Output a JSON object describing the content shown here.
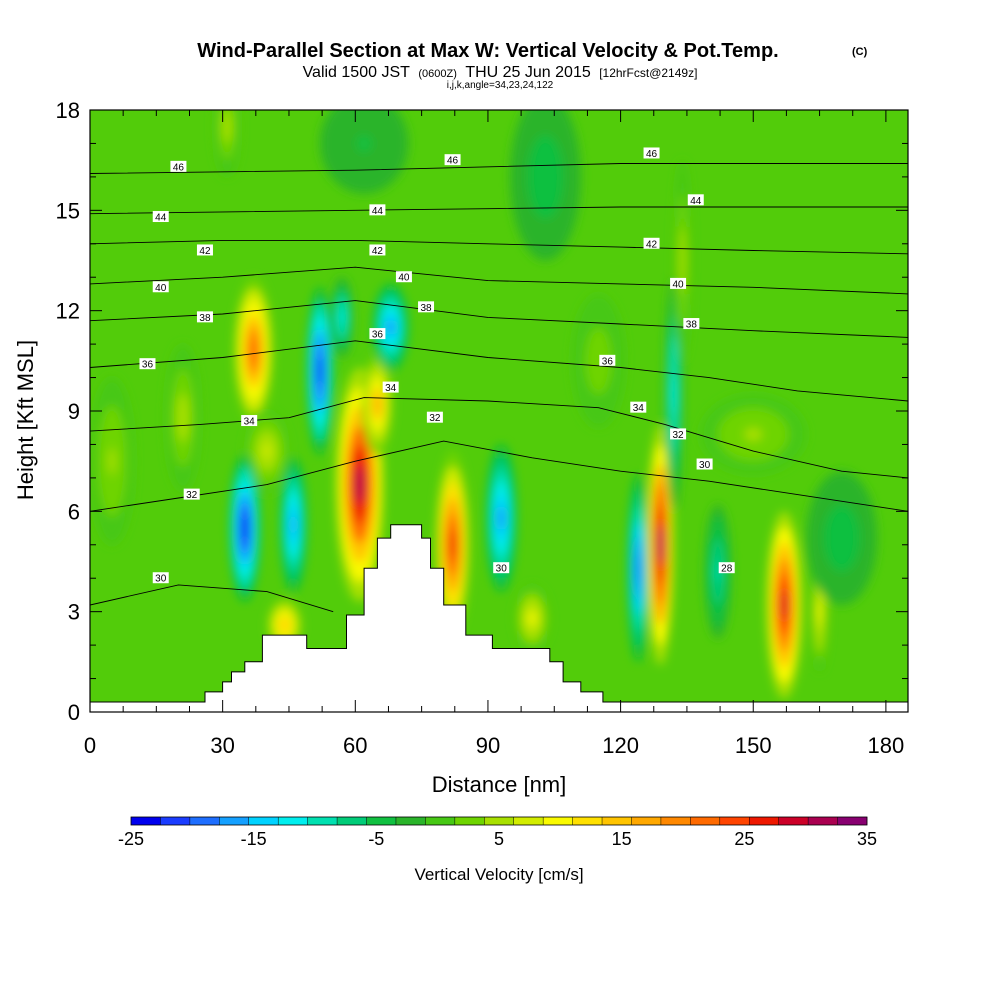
{
  "chart_data": {
    "type": "heatmap",
    "title": "Wind-Parallel Section at Max W: Vertical Velocity & Pot.Temp.",
    "title_mark": "(C)",
    "subtitle": {
      "valid": "Valid 1500 JST",
      "zulu": "(0600Z)",
      "date": "THU 25 Jun 2015",
      "forecast": "[12hrFcst@2149z]"
    },
    "indices": "i,j,k,angle=34,23,24,122",
    "xlabel": "Distance [nm]",
    "ylabel": "Height [Kft MSL]",
    "xlim": [
      0,
      185
    ],
    "ylim": [
      0,
      18
    ],
    "xticks": [
      "0",
      "30",
      "60",
      "90",
      "120",
      "150",
      "180"
    ],
    "yticks": [
      "0",
      "3",
      "6",
      "9",
      "12",
      "15",
      "18"
    ],
    "colorbar": {
      "label": "Vertical Velocity [cm/s]",
      "range": [
        -25,
        35
      ],
      "step": 2.5,
      "tick_labels": [
        "-25",
        "-15",
        "-5",
        "5",
        "15",
        "25",
        "35"
      ],
      "colors": [
        "#0000ee",
        "#1a3cff",
        "#1e6eff",
        "#14a0ff",
        "#00d2ff",
        "#00eeee",
        "#00e0b0",
        "#00cc78",
        "#10c040",
        "#2ab42a",
        "#46c814",
        "#6ed400",
        "#a8e000",
        "#d2ec00",
        "#fafa00",
        "#ffe000",
        "#ffc400",
        "#ffa800",
        "#ff8800",
        "#ff6a00",
        "#ff4400",
        "#ee1800",
        "#cc0028",
        "#aa0050",
        "#880070"
      ]
    },
    "velocity_cells": [
      {
        "x": 37,
        "y": 10.8,
        "rx": 4.5,
        "ry": 2.2,
        "w": 24
      },
      {
        "x": 40,
        "y": 7.8,
        "rx": 5,
        "ry": 1.2,
        "w": 8
      },
      {
        "x": 35,
        "y": 5.5,
        "rx": 3.5,
        "ry": 2.2,
        "w": -25
      },
      {
        "x": 46,
        "y": 5.6,
        "rx": 3,
        "ry": 2,
        "w": -17
      },
      {
        "x": 52,
        "y": 10.2,
        "rx": 3,
        "ry": 2.5,
        "w": -24
      },
      {
        "x": 57,
        "y": 11.8,
        "rx": 2.5,
        "ry": 1.2,
        "w": -12
      },
      {
        "x": 61,
        "y": 6.8,
        "rx": 5.5,
        "ry": 3.5,
        "w": 34
      },
      {
        "x": 65,
        "y": 9.2,
        "rx": 3.5,
        "ry": 1.5,
        "w": 18
      },
      {
        "x": 68,
        "y": 11.5,
        "rx": 4,
        "ry": 1.3,
        "w": -18
      },
      {
        "x": 44,
        "y": 2.6,
        "rx": 4,
        "ry": 0.8,
        "w": 15
      },
      {
        "x": 82,
        "y": 5.0,
        "rx": 4,
        "ry": 2.8,
        "w": 28
      },
      {
        "x": 93,
        "y": 5.8,
        "rx": 3.5,
        "ry": 2.2,
        "w": -18
      },
      {
        "x": 100,
        "y": 2.8,
        "rx": 4,
        "ry": 1.0,
        "w": 10
      },
      {
        "x": 124,
        "y": 4.3,
        "rx": 2.5,
        "ry": 2.8,
        "w": -20
      },
      {
        "x": 129,
        "y": 5.0,
        "rx": 3,
        "ry": 3.6,
        "w": 35
      },
      {
        "x": 132,
        "y": 9.5,
        "rx": 2,
        "ry": 3.5,
        "w": -12
      },
      {
        "x": 134,
        "y": 13.5,
        "rx": 2,
        "ry": 3.0,
        "w": 7
      },
      {
        "x": 142,
        "y": 4.2,
        "rx": 3,
        "ry": 2.0,
        "w": -8
      },
      {
        "x": 157,
        "y": 3.2,
        "rx": 4,
        "ry": 2.8,
        "w": 30
      },
      {
        "x": 165,
        "y": 3.0,
        "rx": 2,
        "ry": 1.8,
        "w": 10
      },
      {
        "x": 5,
        "y": 7.5,
        "rx": 5,
        "ry": 2.5,
        "w": 5
      },
      {
        "x": 21,
        "y": 8.8,
        "rx": 4,
        "ry": 2.2,
        "w": 6
      },
      {
        "x": 31,
        "y": 17.5,
        "rx": 3,
        "ry": 1.5,
        "w": 6
      },
      {
        "x": 62,
        "y": 17.0,
        "rx": 10,
        "ry": 1.5,
        "w": -3
      },
      {
        "x": 103,
        "y": 16.0,
        "rx": 8,
        "ry": 2.5,
        "w": -4
      },
      {
        "x": 115,
        "y": 10.5,
        "rx": 6,
        "ry": 2.0,
        "w": 4
      },
      {
        "x": 150,
        "y": 8.3,
        "rx": 12,
        "ry": 1.2,
        "w": 5
      },
      {
        "x": 170,
        "y": 5.2,
        "rx": 8,
        "ry": 2.0,
        "w": -4
      }
    ],
    "isentropes": [
      {
        "label": "30",
        "pts": [
          [
            0,
            3.2
          ],
          [
            20,
            3.8
          ],
          [
            40,
            3.6
          ],
          [
            55,
            3.0
          ]
        ]
      },
      {
        "label": "32",
        "pts": [
          [
            0,
            6.0
          ],
          [
            20,
            6.4
          ],
          [
            40,
            6.8
          ],
          [
            60,
            7.5
          ],
          [
            80,
            8.1
          ],
          [
            100,
            7.6
          ],
          [
            120,
            7.2
          ],
          [
            140,
            6.9
          ],
          [
            160,
            6.5
          ],
          [
            185,
            6.0
          ]
        ]
      },
      {
        "label": "34",
        "pts": [
          [
            0,
            8.4
          ],
          [
            25,
            8.6
          ],
          [
            45,
            8.8
          ],
          [
            62,
            9.4
          ],
          [
            90,
            9.3
          ],
          [
            115,
            9.1
          ],
          [
            130,
            8.6
          ],
          [
            150,
            7.8
          ],
          [
            170,
            7.2
          ],
          [
            185,
            7.0
          ]
        ]
      },
      {
        "label": "36",
        "pts": [
          [
            0,
            10.3
          ],
          [
            30,
            10.6
          ],
          [
            60,
            11.1
          ],
          [
            90,
            10.6
          ],
          [
            120,
            10.3
          ],
          [
            140,
            10.0
          ],
          [
            160,
            9.6
          ],
          [
            185,
            9.3
          ]
        ]
      },
      {
        "label": "38",
        "pts": [
          [
            0,
            11.7
          ],
          [
            30,
            11.9
          ],
          [
            60,
            12.3
          ],
          [
            90,
            11.8
          ],
          [
            120,
            11.6
          ],
          [
            150,
            11.4
          ],
          [
            185,
            11.2
          ]
        ]
      },
      {
        "label": "40",
        "pts": [
          [
            0,
            12.8
          ],
          [
            30,
            13.0
          ],
          [
            60,
            13.3
          ],
          [
            90,
            12.9
          ],
          [
            120,
            12.8
          ],
          [
            150,
            12.7
          ],
          [
            185,
            12.5
          ]
        ]
      },
      {
        "label": "42",
        "pts": [
          [
            0,
            14.0
          ],
          [
            30,
            14.1
          ],
          [
            60,
            14.1
          ],
          [
            90,
            14.0
          ],
          [
            120,
            13.9
          ],
          [
            150,
            13.8
          ],
          [
            185,
            13.7
          ]
        ]
      },
      {
        "label": "44",
        "pts": [
          [
            0,
            14.9
          ],
          [
            60,
            15.0
          ],
          [
            120,
            15.1
          ],
          [
            185,
            15.1
          ]
        ]
      },
      {
        "label": "46",
        "pts": [
          [
            0,
            16.1
          ],
          [
            60,
            16.2
          ],
          [
            120,
            16.4
          ],
          [
            185,
            16.4
          ]
        ]
      }
    ],
    "contour_labels": [
      {
        "text": "46",
        "x": 20,
        "y": 16.3
      },
      {
        "text": "46",
        "x": 82,
        "y": 16.5
      },
      {
        "text": "46",
        "x": 127,
        "y": 16.7
      },
      {
        "text": "44",
        "x": 16,
        "y": 14.8
      },
      {
        "text": "44",
        "x": 65,
        "y": 15.0
      },
      {
        "text": "44",
        "x": 137,
        "y": 15.3
      },
      {
        "text": "42",
        "x": 26,
        "y": 13.8
      },
      {
        "text": "42",
        "x": 65,
        "y": 13.8
      },
      {
        "text": "42",
        "x": 127,
        "y": 14.0
      },
      {
        "text": "40",
        "x": 16,
        "y": 12.7
      },
      {
        "text": "40",
        "x": 71,
        "y": 13.0
      },
      {
        "text": "40",
        "x": 133,
        "y": 12.8
      },
      {
        "text": "38",
        "x": 26,
        "y": 11.8
      },
      {
        "text": "38",
        "x": 76,
        "y": 12.1
      },
      {
        "text": "38",
        "x": 136,
        "y": 11.6
      },
      {
        "text": "36",
        "x": 13,
        "y": 10.4
      },
      {
        "text": "36",
        "x": 65,
        "y": 11.3
      },
      {
        "text": "36",
        "x": 117,
        "y": 10.5
      },
      {
        "text": "34",
        "x": 36,
        "y": 8.7
      },
      {
        "text": "34",
        "x": 68,
        "y": 9.7
      },
      {
        "text": "34",
        "x": 124,
        "y": 9.1
      },
      {
        "text": "32",
        "x": 23,
        "y": 6.5
      },
      {
        "text": "32",
        "x": 78,
        "y": 8.8
      },
      {
        "text": "32",
        "x": 133,
        "y": 8.3
      },
      {
        "text": "30",
        "x": 16,
        "y": 4.0
      },
      {
        "text": "30",
        "x": 93,
        "y": 4.3
      },
      {
        "text": "30",
        "x": 139,
        "y": 7.4
      },
      {
        "text": "28",
        "x": 144,
        "y": 4.3
      }
    ],
    "terrain": [
      [
        0,
        0.3
      ],
      [
        26,
        0.3
      ],
      [
        26,
        0.6
      ],
      [
        30,
        0.6
      ],
      [
        30,
        0.9
      ],
      [
        32,
        0.9
      ],
      [
        32,
        1.2
      ],
      [
        35,
        1.2
      ],
      [
        35,
        1.5
      ],
      [
        39,
        1.5
      ],
      [
        39,
        2.3
      ],
      [
        49,
        2.3
      ],
      [
        49,
        1.9
      ],
      [
        58,
        1.9
      ],
      [
        58,
        2.9
      ],
      [
        62,
        2.9
      ],
      [
        62,
        4.3
      ],
      [
        65,
        4.3
      ],
      [
        65,
        5.2
      ],
      [
        68,
        5.2
      ],
      [
        68,
        5.6
      ],
      [
        75,
        5.6
      ],
      [
        75,
        5.2
      ],
      [
        77,
        5.2
      ],
      [
        77,
        4.3
      ],
      [
        80,
        4.3
      ],
      [
        80,
        3.2
      ],
      [
        85,
        3.2
      ],
      [
        85,
        2.3
      ],
      [
        91,
        2.3
      ],
      [
        91,
        1.9
      ],
      [
        104,
        1.9
      ],
      [
        104,
        1.5
      ],
      [
        107,
        1.5
      ],
      [
        107,
        0.9
      ],
      [
        111,
        0.9
      ],
      [
        111,
        0.6
      ],
      [
        116,
        0.6
      ],
      [
        116,
        0.3
      ],
      [
        185,
        0.3
      ]
    ]
  }
}
